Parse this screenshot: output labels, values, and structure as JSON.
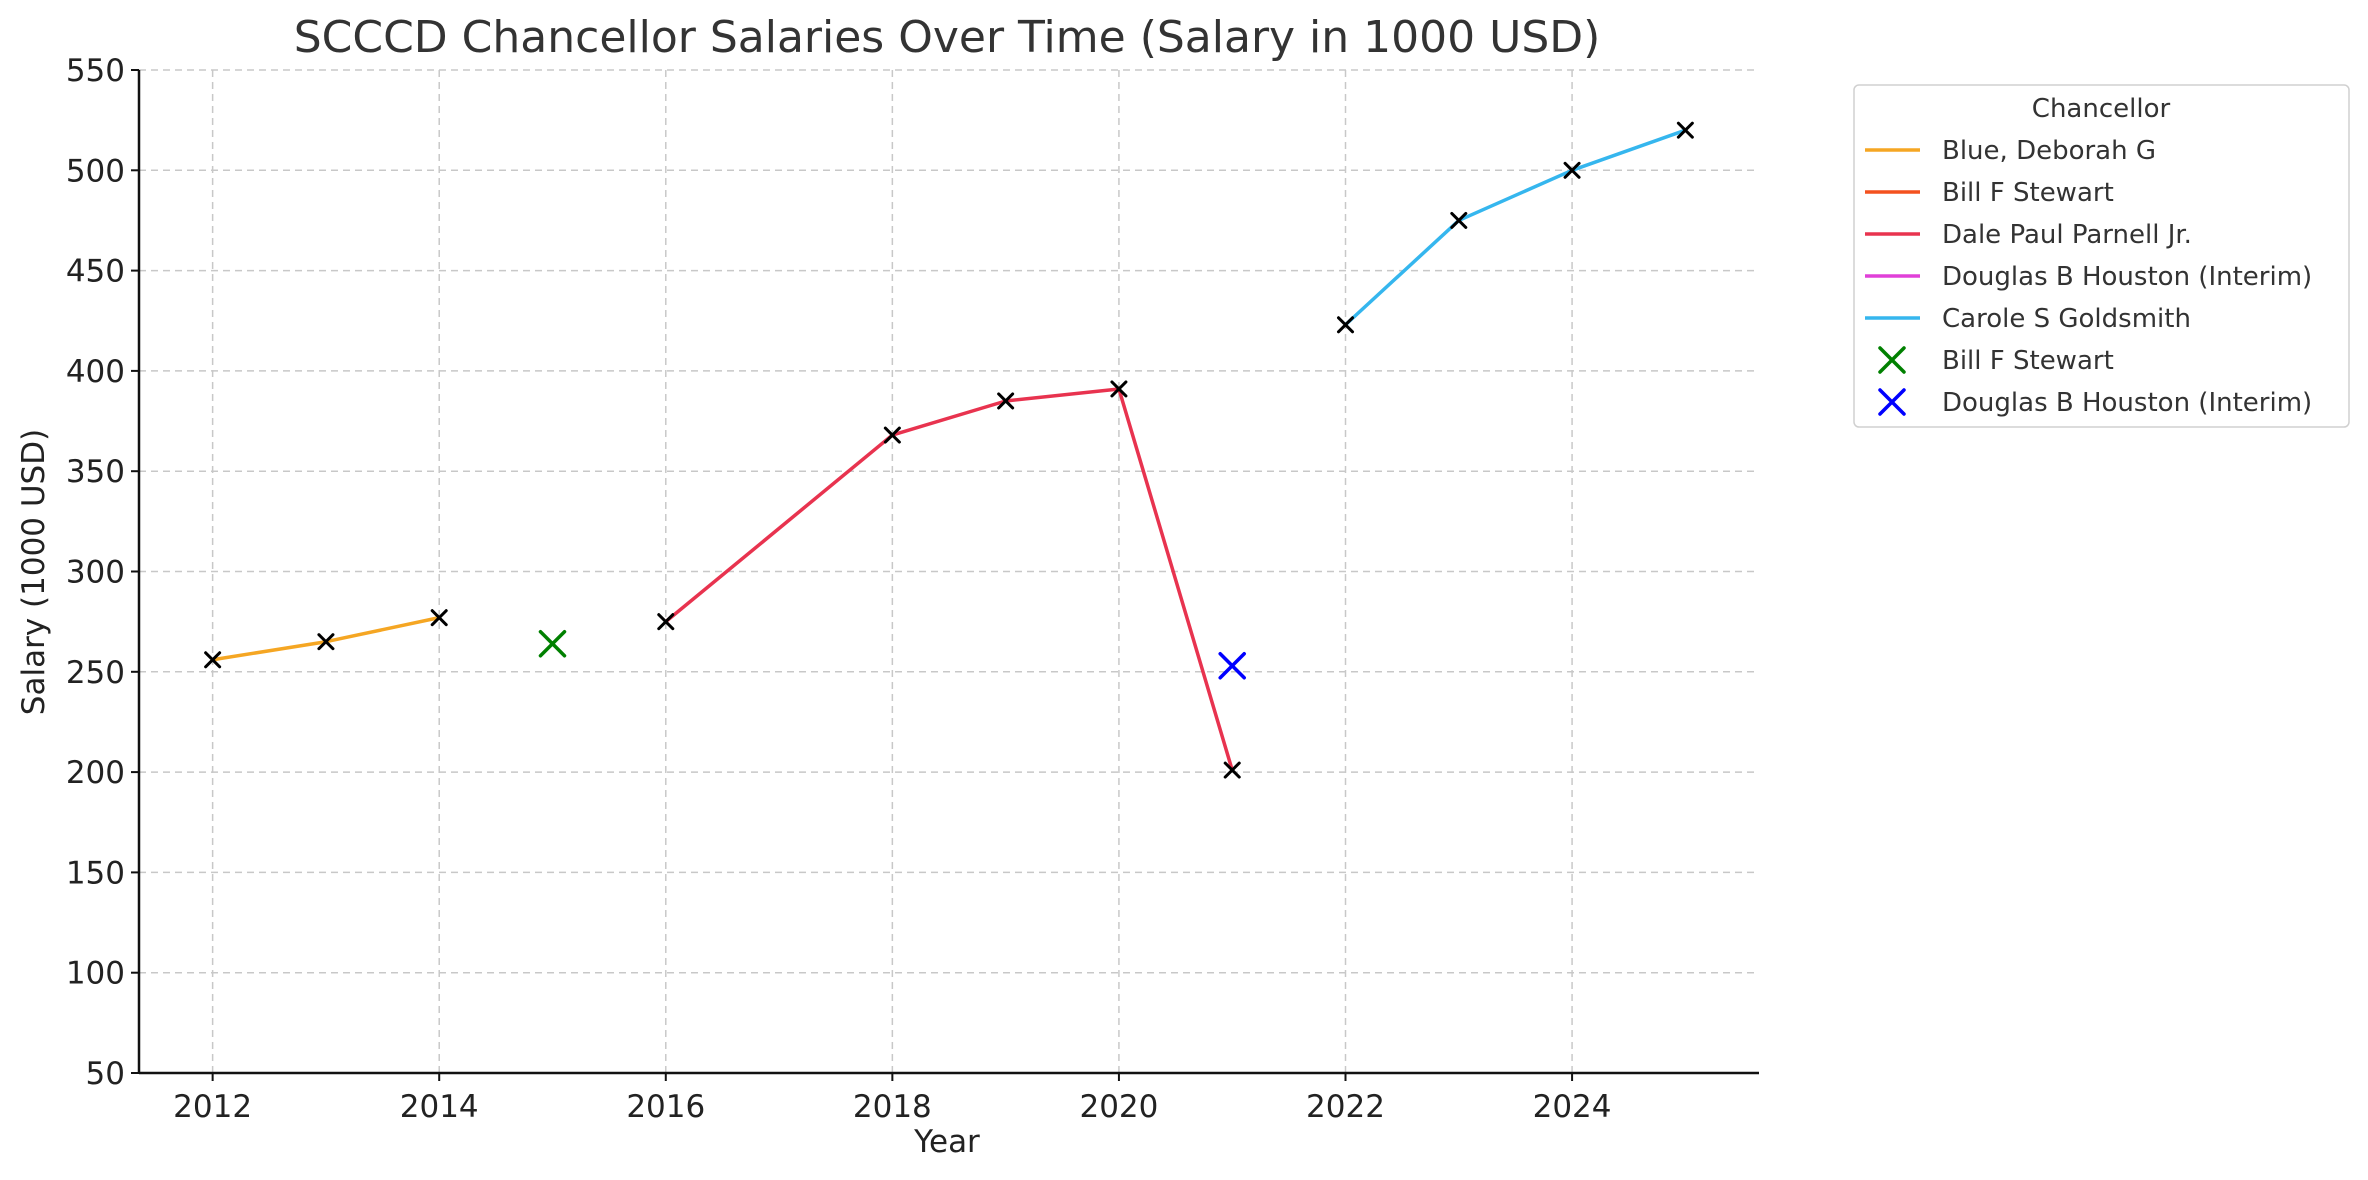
{
  "chart_data": {
    "type": "line",
    "title": "SCCCD Chancellor Salaries Over Time (Salary in 1000 USD)",
    "xlabel": "Year",
    "ylabel": "Salary (1000 USD)",
    "xlim": [
      2011.35,
      2025.65
    ],
    "ylim": [
      50,
      550
    ],
    "xticks": [
      2012,
      2014,
      2016,
      2018,
      2020,
      2022,
      2024
    ],
    "yticks": [
      50,
      100,
      150,
      200,
      250,
      300,
      350,
      400,
      450,
      500,
      550
    ],
    "grid": true,
    "legend_title": "Chancellor",
    "legend_position": "outside-right-top",
    "series": [
      {
        "name": "Blue, Deborah G",
        "kind": "line",
        "color": "#f5a623",
        "points": [
          [
            2012,
            256
          ],
          [
            2013,
            265
          ],
          [
            2014,
            277
          ]
        ]
      },
      {
        "name": "Bill F Stewart",
        "kind": "line",
        "color": "#f4511e",
        "points": []
      },
      {
        "name": "Dale Paul Parnell Jr.",
        "kind": "line",
        "color": "#e8334f",
        "points": [
          [
            2016,
            275
          ],
          [
            2018,
            368
          ],
          [
            2019,
            385
          ],
          [
            2020,
            391
          ],
          [
            2021,
            201
          ]
        ]
      },
      {
        "name": "Douglas B Houston (Interim)",
        "kind": "line",
        "color": "#e040d8",
        "points": []
      },
      {
        "name": "Carole S Goldsmith",
        "kind": "line",
        "color": "#35b6ee",
        "points": [
          [
            2022,
            423
          ],
          [
            2023,
            475
          ],
          [
            2024,
            500
          ],
          [
            2025,
            520
          ]
        ]
      },
      {
        "name": "Bill F Stewart",
        "kind": "scatter",
        "color": "#008000",
        "points": [
          [
            2015,
            264
          ]
        ]
      },
      {
        "name": "Douglas B Houston (Interim)",
        "kind": "scatter",
        "color": "#0000ff",
        "points": [
          [
            2021,
            253
          ]
        ]
      }
    ]
  }
}
